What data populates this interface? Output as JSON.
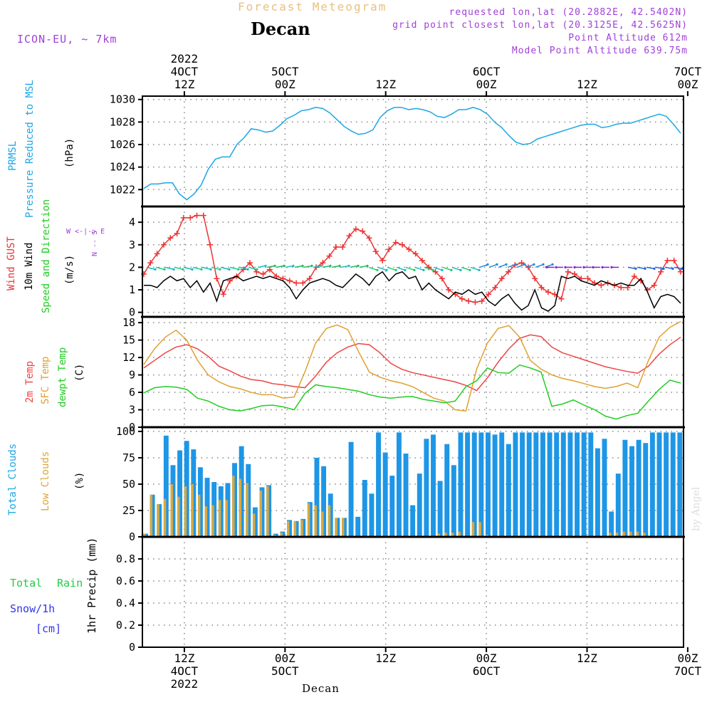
{
  "header": {
    "top_title": "Forecast Meteogram",
    "location": "Decan",
    "model": "ICON-EU, ~ 7km",
    "requested": "requested lon,lat (20.2882E, 42.5402N)",
    "gridpoint": "grid point closest lon,lat (20.3125E, 42.5625N)",
    "point_alt": "Point Altitude 612m",
    "model_alt": "Model Point Altitude 639.75m",
    "footer": "Decan",
    "credit": "by Angel"
  },
  "time_axis": {
    "top": [
      {
        "h": 12,
        "lines": [
          "2022",
          "4OCT",
          "12Z"
        ]
      },
      {
        "h": 24,
        "lines": [
          "5OCT",
          "00Z"
        ]
      },
      {
        "h": 36,
        "lines": [
          "12Z"
        ]
      },
      {
        "h": 48,
        "lines": [
          "6OCT",
          "00Z"
        ]
      },
      {
        "h": 60,
        "lines": [
          "12Z"
        ]
      },
      {
        "h": 72,
        "lines": [
          "7OCT",
          "00Z"
        ]
      }
    ],
    "bottom": [
      {
        "h": 12,
        "lines": [
          "12Z",
          "4OCT",
          "2022"
        ]
      },
      {
        "h": 24,
        "lines": [
          "00Z",
          "5OCT"
        ]
      },
      {
        "h": 36,
        "lines": [
          "12Z"
        ]
      },
      {
        "h": 48,
        "lines": [
          "00Z",
          "6OCT"
        ]
      },
      {
        "h": 60,
        "lines": [
          "12Z"
        ]
      },
      {
        "h": 72,
        "lines": [
          "00Z",
          "7OCT"
        ]
      }
    ]
  },
  "panel_labels": {
    "pressure": {
      "a": "PRMSL",
      "b": "Pressure Reduced to MSL",
      "unit": "(hPa)"
    },
    "wind": {
      "a": "Wind GUST",
      "b": "10m Wind",
      "c": "Speed and Direction",
      "unit": "(m/s)",
      "compass_ns": "N -- S",
      "compass_we": "W <-|-> E"
    },
    "temp": {
      "a": "2m Temp",
      "b": "SFC Temp",
      "c": "dewpt Temp",
      "unit": "(C)"
    },
    "cloud": {
      "a": "Total Clouds",
      "b": "Low Clouds",
      "unit": "(%)"
    },
    "precip": {
      "a": "Total",
      "b": "Rain",
      "c": "Snow/1h",
      "d": "[cm]",
      "unit": "1hr Precip (mm)"
    }
  },
  "colors": {
    "pressure": "#1ca6e6",
    "gust": "#ee3333",
    "wind": "#000000",
    "temp2m": "#ee4444",
    "sfc": "#e0a030",
    "dewpt": "#22cc22",
    "total_clouds": "#1e96e6",
    "low_clouds": "#d8a840",
    "precip_total": "#22cc44",
    "precip_snow": "#3333ee",
    "label_purple": "#a040d8"
  },
  "chart_data": {
    "type": "line",
    "title": "Forecast Meteogram - Decan",
    "x_range_hours": [
      7,
      71.5
    ],
    "x_note": "hours from 2022-10-04 00Z, 1 h steps starting at hour 7",
    "panels": [
      {
        "name": "pressure",
        "ylabel": "PRMSL Pressure Reduced to MSL (hPa)",
        "ylim": [
          1020.5,
          1030.3
        ],
        "yticks": [
          1022,
          1024,
          1026,
          1028,
          1030
        ],
        "series": [
          {
            "name": "PRMSL",
            "values": [
              1022.1,
              1022.5,
              1022.5,
              1022.6,
              1022.6,
              1021.6,
              1021.1,
              1021.6,
              1022.4,
              1023.8,
              1024.7,
              1024.9,
              1024.9,
              1026.0,
              1026.6,
              1027.4,
              1027.3,
              1027.1,
              1027.2,
              1027.7,
              1028.3,
              1028.6,
              1029.0,
              1029.1,
              1029.3,
              1029.2,
              1028.8,
              1028.2,
              1027.6,
              1027.2,
              1026.9,
              1027.0,
              1027.3,
              1028.4,
              1029.0,
              1029.3,
              1029.3,
              1029.1,
              1029.2,
              1029.1,
              1028.9,
              1028.5,
              1028.4,
              1028.7,
              1029.1,
              1029.1,
              1029.3,
              1029.1,
              1028.7,
              1028.0,
              1027.5,
              1026.8,
              1026.2,
              1026.0,
              1026.1,
              1026.5,
              1026.7,
              1026.9,
              1027.1,
              1027.3,
              1027.5,
              1027.7,
              1027.8,
              1027.8,
              1027.5,
              1027.6,
              1027.8,
              1027.9,
              1027.9,
              1028.1,
              1028.3,
              1028.5,
              1028.7,
              1028.5,
              1027.8,
              1027.0
            ]
          }
        ]
      },
      {
        "name": "wind",
        "ylabel": "Wind GUST / 10m Wind Speed and Direction (m/s)",
        "ylim": [
          -0.2,
          4.7
        ],
        "yticks": [
          0,
          1,
          2,
          3,
          4
        ],
        "series": [
          {
            "name": "Wind GUST",
            "values": [
              1.7,
              2.2,
              2.6,
              3.0,
              3.3,
              3.5,
              4.2,
              4.2,
              4.3,
              4.3,
              3.0,
              1.5,
              0.8,
              1.4,
              1.6,
              1.9,
              2.2,
              1.8,
              1.7,
              1.9,
              1.6,
              1.5,
              1.4,
              1.3,
              1.3,
              1.5,
              2.0,
              2.2,
              2.5,
              2.9,
              2.9,
              3.4,
              3.7,
              3.6,
              3.3,
              2.7,
              2.3,
              2.8,
              3.1,
              3.0,
              2.8,
              2.6,
              2.3,
              2.0,
              1.8,
              1.5,
              1.0,
              0.8,
              0.6,
              0.5,
              0.45,
              0.5,
              0.8,
              1.1,
              1.5,
              1.8,
              2.1,
              2.2,
              2.0,
              1.5,
              1.1,
              0.9,
              0.8,
              0.6,
              1.8,
              1.7,
              1.5,
              1.5,
              1.3,
              1.2,
              1.3,
              1.2,
              1.1,
              1.1,
              1.6,
              1.4,
              1.0,
              1.2,
              1.8,
              2.3,
              2.3,
              1.8
            ]
          },
          {
            "name": "10m Wind",
            "values": [
              1.2,
              1.2,
              1.1,
              1.4,
              1.6,
              1.4,
              1.5,
              1.1,
              1.4,
              0.9,
              1.3,
              0.5,
              1.4,
              1.5,
              1.6,
              1.4,
              1.5,
              1.6,
              1.5,
              1.6,
              1.5,
              1.4,
              1.1,
              0.6,
              1.0,
              1.3,
              1.4,
              1.5,
              1.4,
              1.2,
              1.1,
              1.4,
              1.7,
              1.5,
              1.2,
              1.6,
              1.8,
              1.4,
              1.7,
              1.8,
              1.5,
              1.6,
              1.0,
              1.3,
              1.0,
              0.8,
              0.6,
              0.9,
              0.8,
              1.0,
              0.8,
              0.9,
              0.5,
              0.3,
              0.6,
              0.8,
              0.4,
              0.1,
              0.3,
              1.0,
              0.2,
              0.05,
              0.3,
              1.6,
              1.5,
              1.6,
              1.4,
              1.3,
              1.2,
              1.4,
              1.3,
              1.2,
              1.3,
              1.2,
              1.2,
              1.5,
              0.9,
              0.2,
              0.7,
              0.8,
              0.7,
              0.4
            ]
          }
        ]
      },
      {
        "name": "temperature",
        "ylabel": "2m Temp / SFC Temp / dewpt Temp (C)",
        "ylim": [
          0,
          19
        ],
        "yticks": [
          0,
          3,
          6,
          9,
          12,
          15,
          18
        ],
        "series": [
          {
            "name": "2m Temp",
            "values": [
              10.2,
              11.5,
              12.8,
              13.8,
              14.2,
              13.5,
              12.2,
              10.5,
              9.7,
              8.8,
              8.2,
              8.0,
              7.5,
              7.3,
              7.0,
              6.8,
              8.8,
              11.2,
              12.8,
              13.8,
              14.4,
              14.2,
              12.8,
              11.0,
              10.0,
              9.4,
              9.0,
              8.6,
              8.2,
              7.8,
              7.2,
              6.3,
              8.5,
              11.2,
              13.5,
              15.3,
              15.9,
              15.6,
              13.8,
              12.8,
              12.2,
              11.6,
              11.0,
              10.4,
              10.0,
              9.6,
              9.3,
              10.5,
              12.6,
              14.2,
              15.5
            ]
          },
          {
            "name": "SFC Temp",
            "values": [
              10.8,
              13.5,
              15.5,
              16.7,
              15.0,
              11.5,
              9.0,
              7.8,
              7.0,
              6.6,
              6.0,
              5.6,
              5.6,
              5.0,
              5.2,
              9.5,
              14.5,
              17.0,
              17.6,
              16.8,
              13.0,
              9.5,
              8.6,
              8.0,
              7.6,
              7.0,
              6.0,
              5.0,
              4.5,
              3.0,
              2.8,
              10.0,
              14.5,
              17.0,
              17.5,
              15.5,
              11.5,
              10.0,
              9.0,
              8.4,
              8.0,
              7.5,
              7.0,
              6.7,
              7.0,
              7.6,
              6.8,
              11.5,
              15.5,
              17.2,
              18.2
            ]
          },
          {
            "name": "dewpt Temp",
            "values": [
              5.9,
              6.8,
              7.0,
              6.9,
              6.5,
              5.0,
              4.5,
              3.6,
              3.0,
              2.8,
              3.2,
              3.7,
              3.8,
              3.5,
              3.0,
              5.8,
              7.3,
              7.0,
              6.8,
              6.5,
              6.2,
              5.6,
              5.2,
              5.0,
              5.2,
              5.3,
              4.8,
              4.5,
              4.2,
              4.5,
              7.0,
              8.0,
              10.2,
              9.4,
              9.3,
              10.7,
              10.2,
              9.5,
              3.6,
              4.0,
              4.7,
              3.8,
              3.0,
              1.9,
              1.4,
              2.0,
              2.4,
              4.5,
              6.5,
              8.1,
              7.6
            ]
          }
        ]
      },
      {
        "name": "clouds",
        "type": "bar",
        "ylabel": "Total Clouds / Low Clouds (%)",
        "ylim": [
          0,
          104
        ],
        "yticks": [
          0,
          25,
          50,
          75,
          100
        ],
        "series": [
          {
            "name": "Total Clouds",
            "values": [
              3,
              40,
              31,
              96,
              68,
              82,
              91,
              83,
              66,
              56,
              52,
              48,
              51,
              70,
              86,
              69,
              28,
              47,
              49,
              3,
              5,
              16,
              15,
              17,
              33,
              75,
              67,
              41,
              18,
              18,
              90,
              19,
              54,
              41,
              99,
              80,
              58,
              99,
              79,
              30,
              60,
              93,
              97,
              53,
              88,
              68,
              99,
              99,
              99,
              99,
              99,
              97,
              99,
              88,
              99,
              99,
              99,
              99,
              99,
              99,
              99,
              99,
              99,
              99,
              99,
              99,
              84,
              93,
              24,
              60,
              92,
              86,
              92,
              89,
              99,
              99,
              99,
              99,
              99
            ]
          },
          {
            "name": "Low Clouds",
            "values": [
              3,
              40,
              31,
              36,
              50,
              38,
              48,
              50,
              40,
              29,
              30,
              35,
              35,
              58,
              55,
              51,
              22,
              44,
              48,
              2,
              4,
              15,
              15,
              16,
              32,
              30,
              24,
              30,
              18,
              18,
              0,
              0,
              0,
              0,
              0,
              0,
              0,
              0,
              0,
              0,
              0,
              0,
              0,
              3,
              4,
              4,
              5,
              1,
              14,
              14,
              2,
              0,
              0,
              0,
              0,
              0,
              0,
              0,
              0,
              0,
              0,
              0,
              0,
              0,
              0,
              0,
              0,
              0,
              4,
              4,
              5,
              5,
              5,
              4,
              1,
              0,
              0,
              0,
              0
            ]
          }
        ]
      },
      {
        "name": "precipitation",
        "ylabel": "1hr Precip (mm)",
        "ylim": [
          0,
          1.0
        ],
        "yticks": [
          0,
          0.2,
          0.4,
          0.6,
          0.8
        ],
        "series": [
          {
            "name": "Total Rain",
            "values": []
          },
          {
            "name": "Snow/1h",
            "values": []
          }
        ]
      }
    ]
  }
}
